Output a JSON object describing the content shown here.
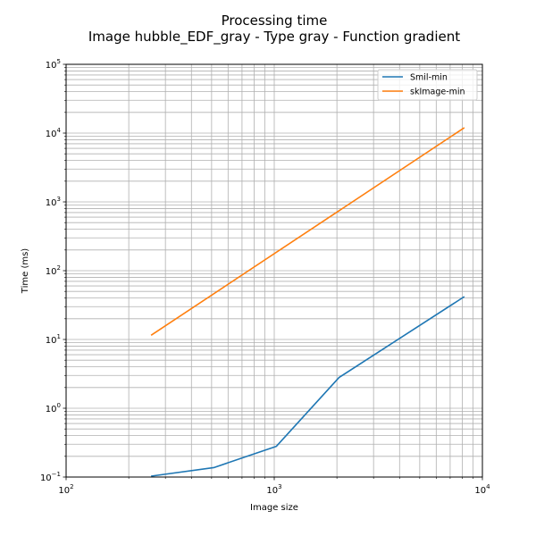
{
  "chart_data": {
    "type": "line",
    "title": "Processing time",
    "subtitle": "Image hubble_EDF_gray - Type gray - Function gradient",
    "xlabel": "Image size",
    "ylabel": "Time (ms)",
    "xscale": "log",
    "yscale": "log",
    "xlim": [
      100,
      10000
    ],
    "ylim": [
      0.1,
      100000
    ],
    "x_ticks": [
      {
        "value": 100,
        "base": "10",
        "exp": "2"
      },
      {
        "value": 1000,
        "base": "10",
        "exp": "3"
      },
      {
        "value": 10000,
        "base": "10",
        "exp": "4"
      }
    ],
    "y_ticks": [
      {
        "value": 0.1,
        "base": "10",
        "exp": "−1"
      },
      {
        "value": 1,
        "base": "10",
        "exp": "0"
      },
      {
        "value": 10,
        "base": "10",
        "exp": "1"
      },
      {
        "value": 100,
        "base": "10",
        "exp": "2"
      },
      {
        "value": 1000,
        "base": "10",
        "exp": "3"
      },
      {
        "value": 10000,
        "base": "10",
        "exp": "4"
      },
      {
        "value": 100000,
        "base": "10",
        "exp": "5"
      }
    ],
    "grid": true,
    "legend_position": "top-right",
    "series": [
      {
        "name": "Smil-min",
        "color": "#1f77b4",
        "x": [
          256,
          512,
          1024,
          2048,
          8192
        ],
        "y": [
          0.103,
          0.137,
          0.28,
          2.8,
          42
        ]
      },
      {
        "name": "skImage-min",
        "color": "#ff7f0e",
        "x": [
          256,
          8192
        ],
        "y": [
          11.5,
          12000
        ]
      }
    ]
  }
}
